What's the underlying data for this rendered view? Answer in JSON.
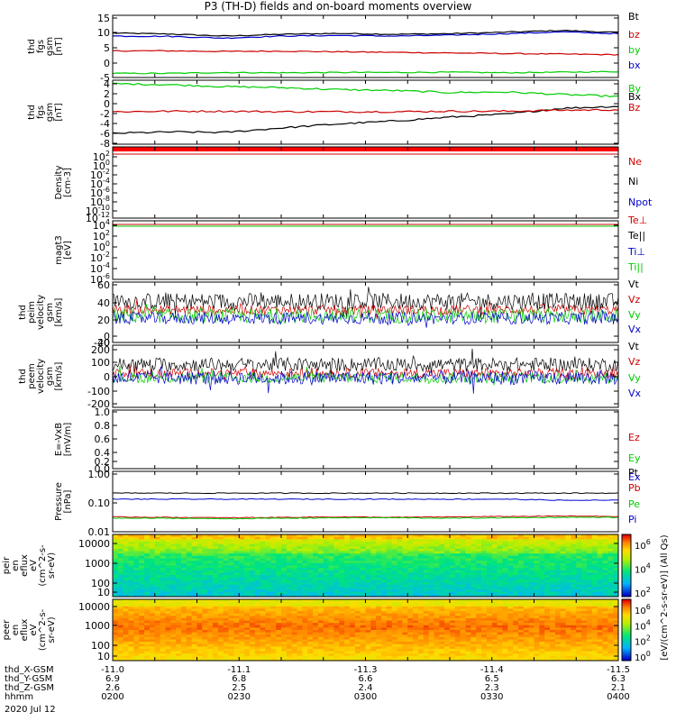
{
  "title": "P3 (TH-D) fields and on-board moments overview",
  "chart_data": [
    {
      "type": "line",
      "panel": "fgs",
      "ylabel": [
        "thd",
        "fgs",
        "gsm",
        "[nT]"
      ],
      "yticks": [
        "15",
        "10",
        "5",
        "0",
        "-5"
      ],
      "ylim": [
        -5,
        16
      ],
      "series": [
        {
          "name": "Bt",
          "color": "#000000",
          "values": [
            10.0,
            9.7,
            9.0,
            9.6,
            9.9,
            9.6,
            9.8,
            10.3,
            10.9,
            10.2
          ]
        },
        {
          "name": "bz",
          "color": "#cc0000",
          "values": [
            4.0,
            4.0,
            3.8,
            3.9,
            3.7,
            3.5,
            3.3,
            3.1,
            2.9,
            2.7
          ]
        },
        {
          "name": "by",
          "color": "#00cc00",
          "values": [
            -3.6,
            -3.6,
            -3.3,
            -3.4,
            -3.3,
            -3.3,
            -3.2,
            -3.4,
            -3.2,
            -3.0
          ]
        },
        {
          "name": "bx",
          "color": "#0000cc",
          "values": [
            9.0,
            8.9,
            8.3,
            9.0,
            9.2,
            9.0,
            9.3,
            9.8,
            10.4,
            9.8
          ]
        }
      ]
    },
    {
      "type": "line",
      "panel": "fgs-zoom",
      "ylabel": [
        "thd",
        "fgs",
        "gsm",
        "[nT]"
      ],
      "yticks": [
        "4",
        "2",
        "0",
        "-2",
        "-4",
        "-6",
        "-8"
      ],
      "ylim": [
        -8.5,
        4.5
      ],
      "series": [
        {
          "name": "By",
          "color": "#00cc00",
          "values": [
            3.8,
            3.6,
            3.2,
            3.0,
            2.6,
            2.4,
            2.0,
            2.1,
            1.6,
            1.2
          ]
        },
        {
          "name": "Bx",
          "color": "#000000",
          "values": [
            -6.3,
            -6.0,
            -6.1,
            -5.2,
            -4.4,
            -3.8,
            -3.0,
            -2.4,
            -1.2,
            -0.8
          ]
        },
        {
          "name": "Bz",
          "color": "#cc0000",
          "values": [
            -1.9,
            -1.8,
            -1.8,
            -1.9,
            -1.9,
            -1.9,
            -1.8,
            -1.8,
            -1.6,
            -1.5
          ]
        }
      ]
    },
    {
      "type": "line",
      "panel": "density",
      "ylabel": [
        "Density",
        "[cm-3]"
      ],
      "yticks": [
        "10",
        "10",
        "10",
        "10",
        "10",
        "10",
        "10",
        "10"
      ],
      "ytick_exp": [
        "2",
        "0",
        "-2",
        "-4",
        "-6",
        "-8",
        "-10",
        "-12"
      ],
      "legend": [
        {
          "name": "Ne",
          "color": "#cc0000"
        },
        {
          "name": "Ni",
          "color": "#000000"
        },
        {
          "name": "Npot",
          "color": "#0000cc"
        }
      ]
    },
    {
      "type": "line",
      "panel": "temperature",
      "ylabel": [
        "magt3",
        "[eV]"
      ],
      "yticks": [
        "10",
        "10",
        "10",
        "10",
        "10",
        "10"
      ],
      "ytick_exp": [
        "4",
        "2",
        "0",
        "-2",
        "-4",
        "-6"
      ],
      "legend": [
        {
          "name": "Te⊥",
          "color": "#cc0000"
        },
        {
          "name": "Te||",
          "color": "#000000"
        },
        {
          "name": "Ti⊥",
          "color": "#0000cc"
        },
        {
          "name": "Ti||",
          "color": "#00cc00"
        }
      ]
    },
    {
      "type": "line",
      "panel": "peim-velocity",
      "ylabel": [
        "thd",
        "peim",
        "velocity",
        "gsm",
        "[km/s]"
      ],
      "yticks": [
        "60",
        "40",
        "20",
        "0",
        "-20",
        "-40"
      ],
      "ylim": [
        -40,
        60
      ],
      "series": [
        {
          "name": "Vt",
          "color": "#000000",
          "center": 28,
          "spread": 14
        },
        {
          "name": "Vz",
          "color": "#cc0000",
          "center": 14,
          "spread": 8
        },
        {
          "name": "Vy",
          "color": "#00cc00",
          "center": 4,
          "spread": 12
        },
        {
          "name": "Vx",
          "color": "#0000cc",
          "center": 0,
          "spread": 10
        }
      ]
    },
    {
      "type": "line",
      "panel": "peem-velocity",
      "ylabel": [
        "thd",
        "peem",
        "velocity",
        "gsm",
        "[km/s]"
      ],
      "yticks": [
        "200",
        "100",
        "0",
        "-100",
        "-200"
      ],
      "ylim": [
        -200,
        200
      ],
      "series": [
        {
          "name": "Vt",
          "color": "#000000",
          "center": 75,
          "spread": 45
        },
        {
          "name": "Vz",
          "color": "#cc0000",
          "center": 20,
          "spread": 30
        },
        {
          "name": "Vy",
          "color": "#00cc00",
          "center": -10,
          "spread": 35
        },
        {
          "name": "Vx",
          "color": "#0000cc",
          "center": -10,
          "spread": 45
        }
      ]
    },
    {
      "type": "line",
      "panel": "efield",
      "ylabel": [
        "E=-VxB",
        "[mV/m]"
      ],
      "yticks": [
        "1.0",
        "0.8",
        "0.6",
        "0.4",
        "0.2",
        "0.0"
      ],
      "ylim": [
        0,
        1.0
      ],
      "legend": [
        {
          "name": "Ez",
          "color": "#cc0000"
        },
        {
          "name": "Ey",
          "color": "#00cc00"
        },
        {
          "name": "Ex",
          "color": "#0000cc"
        }
      ]
    },
    {
      "type": "line",
      "panel": "pressure",
      "ylabel": [
        "Pressure",
        "[nPa]"
      ],
      "yticks": [
        "1.00",
        "0.10",
        "0.01"
      ],
      "ylim_log": [
        0.01,
        1.0
      ],
      "series": [
        {
          "name": "Pt",
          "color": "#000000",
          "values": [
            0.19,
            0.19,
            0.19,
            0.19,
            0.19,
            0.19,
            0.19,
            0.19,
            0.19,
            0.19
          ]
        },
        {
          "name": "Pb",
          "color": "#cc0000",
          "values": [
            0.031,
            0.03,
            0.029,
            0.03,
            0.031,
            0.03,
            0.031,
            0.032,
            0.033,
            0.032
          ]
        },
        {
          "name": "Pe",
          "color": "#00cc00",
          "values": [
            0.028,
            0.028,
            0.027,
            0.028,
            0.029,
            0.029,
            0.028,
            0.029,
            0.03,
            0.03
          ]
        },
        {
          "name": "Pi",
          "color": "#0000cc",
          "values": [
            0.12,
            0.12,
            0.12,
            0.12,
            0.12,
            0.12,
            0.12,
            0.12,
            0.11,
            0.11
          ]
        }
      ]
    },
    {
      "type": "heatmap",
      "panel": "peir",
      "ylabel": [
        "thd",
        "peir",
        "en",
        "eflux",
        "eV",
        "(cm^2-s-",
        "sr-eV)"
      ],
      "yticks": [
        "10000",
        "1000",
        "100",
        "10"
      ],
      "ylim_log": [
        5,
        20000
      ]
    },
    {
      "type": "heatmap",
      "panel": "peer",
      "ylabel": [
        "thd",
        "peer",
        "en",
        "eflux",
        "eV",
        "(cm^2-s-",
        "sr-eV)"
      ],
      "yticks": [
        "10000",
        "1000",
        "100",
        "10"
      ],
      "ylim_log": [
        5,
        20000
      ]
    }
  ],
  "colorbar": {
    "label": "[eV/(cm^2-s-sr-eV)] (All Qs)",
    "ticks_upper": [
      "10",
      "10",
      "10"
    ],
    "ticks_upper_exp": [
      "6",
      "4",
      "2"
    ],
    "ticks_lower": [
      "10",
      "10",
      "10",
      "10"
    ],
    "ticks_lower_exp": [
      "6",
      "4",
      "2",
      "0"
    ]
  },
  "xaxis": {
    "rows": [
      {
        "label": "thd_X-GSM",
        "values": [
          "-11.0",
          "-11.1",
          "-11.3",
          "-11.4",
          "-11.5"
        ]
      },
      {
        "label": "thd_Y-GSM",
        "values": [
          "6.9",
          "6.8",
          "6.6",
          "6.5",
          "6.3"
        ]
      },
      {
        "label": "thd_Z-GSM",
        "values": [
          "2.6",
          "2.5",
          "2.4",
          "2.3",
          "2.1"
        ]
      },
      {
        "label": "hhmm",
        "values": [
          "0200",
          "0230",
          "0300",
          "0330",
          "0400"
        ]
      }
    ],
    "date": "2020 Jul 12"
  }
}
